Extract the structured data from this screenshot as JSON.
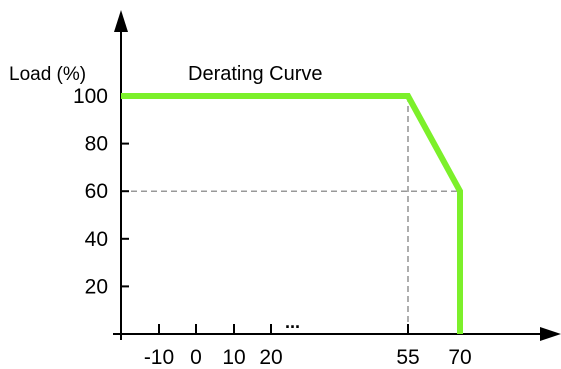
{
  "chart_data": {
    "type": "line",
    "title": "Derating Curve",
    "ylabel": "Load (%)",
    "xlabel": "",
    "x_ticks": [
      -10,
      0,
      10,
      20,
      55,
      70
    ],
    "x_tick_labels": [
      "-10",
      "0",
      "10",
      "20",
      "55",
      "70"
    ],
    "x_axis_ellipsis": "...",
    "y_ticks": [
      20,
      40,
      60,
      80,
      100
    ],
    "y_tick_labels": [
      "20",
      "40",
      "60",
      "80",
      "100"
    ],
    "x_range": [
      -10,
      70
    ],
    "y_range": [
      0,
      100
    ],
    "grid": false,
    "series": [
      {
        "points": [
          {
            "x": -10,
            "y": 100
          },
          {
            "x": 55,
            "y": 100
          },
          {
            "x": 70,
            "y": 60
          },
          {
            "x": 70,
            "y": 0
          }
        ]
      }
    ],
    "reference_lines": [
      {
        "x": 55,
        "y": 100
      },
      {
        "x": 70,
        "y": 60
      }
    ]
  },
  "colors": {
    "curve": "#7CF02A",
    "axis": "#000000",
    "reference": "#777777"
  }
}
